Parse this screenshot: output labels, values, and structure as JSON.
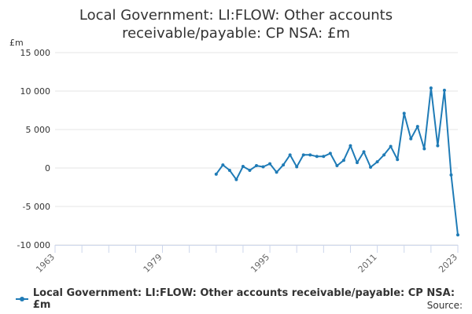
{
  "title_line1": "Local Government: LI:FLOW: Other accounts",
  "title_line2": "receivable/payable: CP NSA: £m",
  "source_label": "Source:",
  "line_color": "#1f7bb6",
  "chart_data": {
    "type": "line",
    "title": "Local Government: LI:FLOW: Other accounts receivable/payable: CP NSA: £m",
    "ylabel": "£m",
    "xlabel": "",
    "ylim": [
      -10000,
      15000
    ],
    "xlim": [
      1963,
      2023
    ],
    "x_ticks": [
      1963,
      1979,
      1995,
      2011,
      2023
    ],
    "y_ticks": [
      -10000,
      -5000,
      0,
      5000,
      10000,
      15000
    ],
    "y_tick_labels": [
      "-10 000",
      "-5 000",
      "0",
      "5 000",
      "10 000",
      "15 000"
    ],
    "grid": "horizontal",
    "legend_position": "bottom",
    "series": [
      {
        "name": "Local Government: LI:FLOW: Other accounts receivable/payable: CP NSA: £m",
        "x": [
          1987,
          1988,
          1989,
          1990,
          1991,
          1992,
          1993,
          1994,
          1995,
          1996,
          1997,
          1998,
          1999,
          2000,
          2001,
          2002,
          2003,
          2004,
          2005,
          2006,
          2007,
          2008,
          2009,
          2010,
          2011,
          2012,
          2013,
          2014,
          2015,
          2016,
          2017,
          2018,
          2019,
          2020,
          2021,
          2022,
          2023
        ],
        "values": [
          -800,
          400,
          -300,
          -1500,
          200,
          -300,
          300,
          150,
          550,
          -550,
          400,
          1700,
          150,
          1700,
          1700,
          1500,
          1500,
          1900,
          300,
          1000,
          2900,
          700,
          2100,
          100,
          800,
          1700,
          2800,
          1100,
          7100,
          3800,
          5400,
          2500,
          10400,
          2900,
          10100,
          -900,
          -8700
        ]
      }
    ]
  }
}
